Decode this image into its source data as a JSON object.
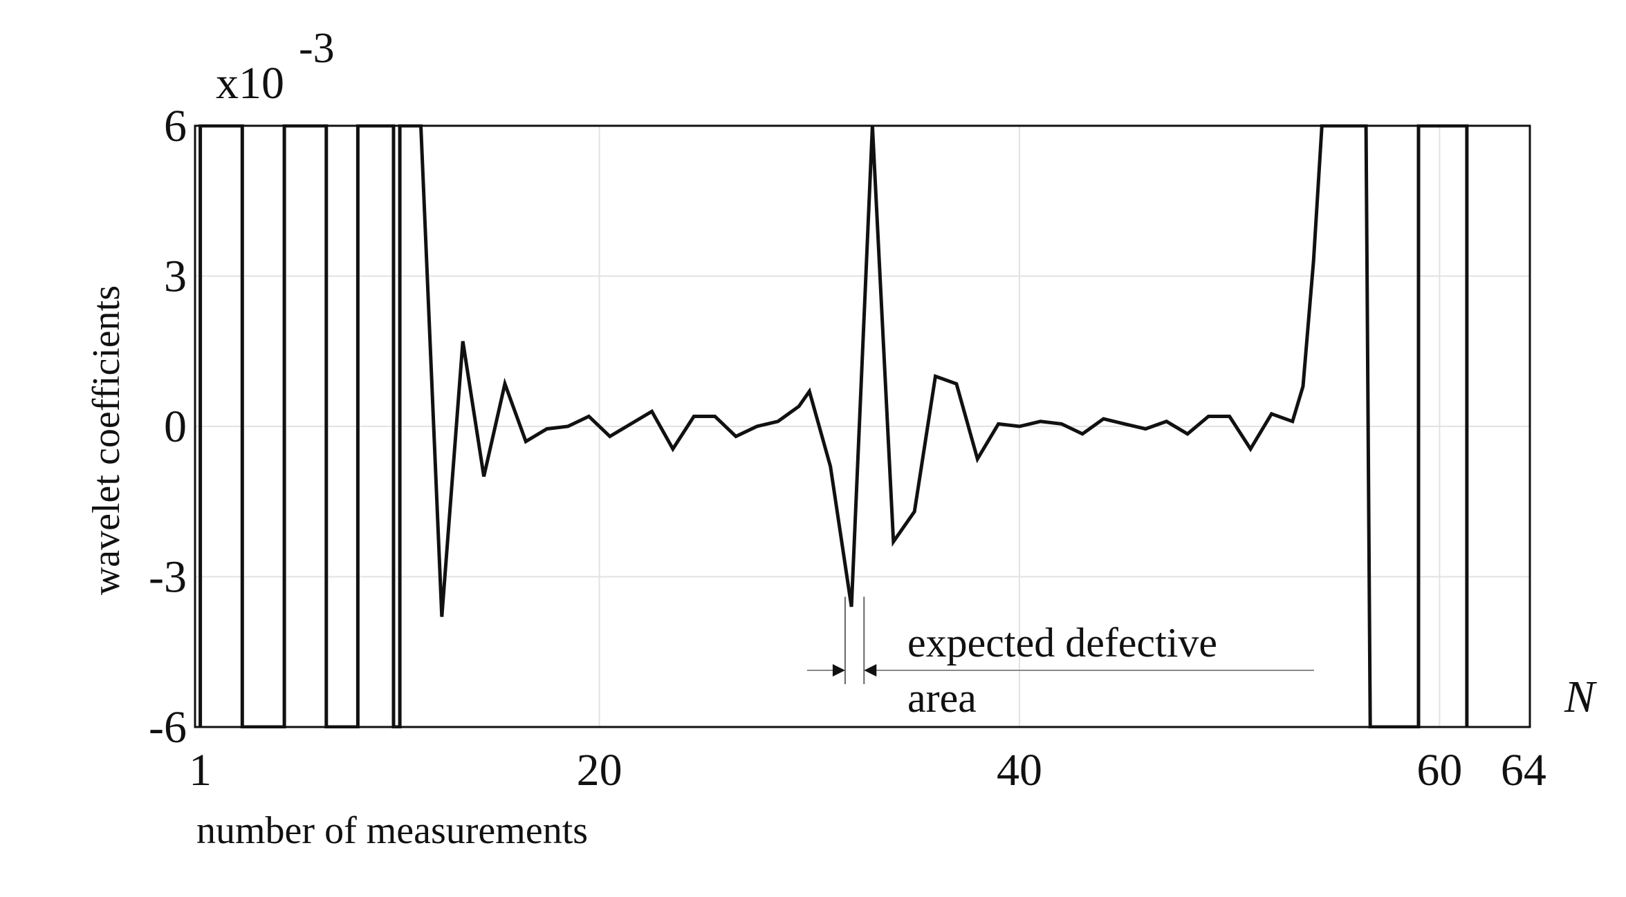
{
  "chart_data": {
    "type": "line",
    "title": "",
    "xlabel": "number of measurements",
    "ylabel": "wavelet coefficients",
    "x_axis_symbol": "N",
    "y_multiplier": "x10",
    "y_multiplier_exponent": "-3",
    "xlim": [
      0.75,
      64.3
    ],
    "ylim": [
      -6,
      6
    ],
    "x_ticks": [
      1,
      20,
      40,
      60,
      64
    ],
    "x_tick_labels": [
      "1",
      "20",
      "40",
      "60",
      "64"
    ],
    "y_ticks": [
      6,
      3,
      0,
      -3,
      -6
    ],
    "y_tick_labels": [
      "6",
      "3",
      "0",
      "-3",
      "-6"
    ],
    "grid": true,
    "legend": "none",
    "line_color": "#111111",
    "grid_color": "#e2e2e2",
    "series": [
      {
        "x": [
          1,
          1,
          3,
          3,
          5,
          5,
          7,
          7,
          8.5,
          8.5,
          10.2,
          10.2,
          10.5,
          10.5,
          11.5,
          12.5,
          13.5,
          14.5,
          15.5,
          16.5,
          17.5,
          18.5,
          19.5,
          20.5,
          21.5,
          22.5,
          23.5,
          24.5,
          25.5,
          26.5,
          27.5,
          28.5,
          29.5,
          30,
          31,
          32,
          33,
          34,
          35,
          36,
          37,
          38,
          39,
          40,
          41,
          42,
          43,
          44,
          45,
          46,
          47,
          48,
          49,
          50,
          51,
          52,
          53,
          53.5,
          54,
          54.4,
          56.5,
          56.7,
          59,
          59,
          61.3,
          61.3
        ],
        "y": [
          -6,
          6,
          6,
          -6,
          -6,
          6,
          6,
          -6,
          -6,
          6,
          6,
          -6,
          -6,
          6,
          6,
          -3.8,
          1.7,
          -1,
          0.85,
          -0.3,
          -0.05,
          0,
          0.2,
          -0.2,
          0.05,
          0.3,
          -0.45,
          0.2,
          0.2,
          -0.2,
          0,
          0.1,
          0.4,
          0.7,
          -0.8,
          -3.6,
          6,
          -2.3,
          -1.7,
          1,
          0.85,
          -0.65,
          0.05,
          0,
          0.1,
          0.05,
          -0.15,
          0.15,
          0.05,
          -0.05,
          0.1,
          -0.15,
          0.2,
          0.2,
          -0.45,
          0.25,
          0.1,
          0.8,
          3.3,
          6,
          6,
          -6,
          -6,
          6,
          6,
          -6
        ]
      }
    ],
    "annotation": {
      "line1": "expected defective",
      "line2": "area",
      "marker_x": [
        31.7,
        32.6
      ],
      "marker_y": -3.4
    }
  }
}
